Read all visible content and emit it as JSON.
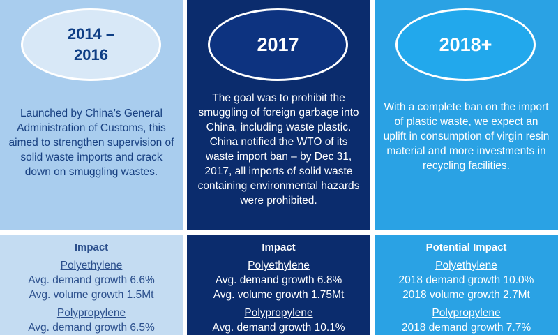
{
  "columns": [
    {
      "year": "2014 –\n2016",
      "description": "Launched by China’s General Administration of Customs, this aimed to strengthen supervision of solid waste imports and crack down on smuggling wastes.",
      "impact_title": "Impact",
      "materials": [
        {
          "name": "Polyethylene",
          "line1": "Avg. demand growth 6.6%",
          "line2": "Avg. volume growth 1.5Mt"
        },
        {
          "name": "Polypropylene",
          "line1": "Avg. demand growth 6.5%",
          "line2": ""
        }
      ]
    },
    {
      "year": "2017",
      "description": "The goal was to prohibit the smuggling of foreign garbage into China, including waste plastic. China notified the WTO of its waste import ban – by Dec 31, 2017, all imports of solid waste containing environmental hazards were prohibited.",
      "impact_title": "Impact",
      "materials": [
        {
          "name": "Polyethylene",
          "line1": "Avg. demand growth 6.8%",
          "line2": "Avg. volume growth 1.75Mt"
        },
        {
          "name": "Polypropylene",
          "line1": "Avg. demand growth 10.1%",
          "line2": ""
        }
      ]
    },
    {
      "year": "2018+",
      "description": "With a complete ban on the import of plastic waste, we expect an uplift in consumption of virgin resin material and more investments in recycling facilities.",
      "impact_title": "Potential Impact",
      "materials": [
        {
          "name": "Polyethylene",
          "line1": "2018 demand growth 10.0%",
          "line2": "2018 volume growth 2.7Mt"
        },
        {
          "name": "Polypropylene",
          "line1": "2018 demand growth 7.7%",
          "line2": ""
        }
      ]
    }
  ]
}
